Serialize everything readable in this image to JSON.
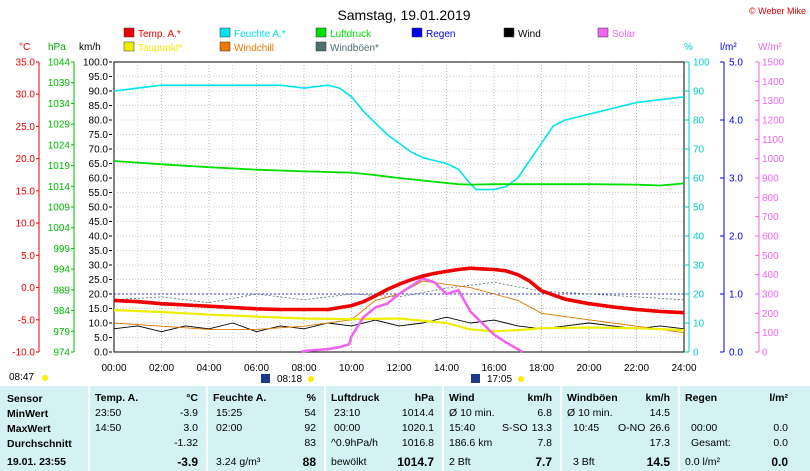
{
  "title": "Samstag, 19.01.2019",
  "copyright": "© Weber Mike",
  "legend": [
    {
      "label": "Temp. A.*",
      "color": "#ee0000"
    },
    {
      "label": "Feuchte A.*",
      "color": "#00e5ee"
    },
    {
      "label": "Luftdruck",
      "color": "#00dd00"
    },
    {
      "label": "Regen",
      "color": "#0000ee"
    },
    {
      "label": "Wind",
      "color": "#000000"
    },
    {
      "label": "Solar",
      "color": "#ee66ee"
    },
    {
      "label": "Taupunkt*",
      "color": "#eeee00"
    },
    {
      "label": "Windchill",
      "color": "#ee7700"
    },
    {
      "label": "Windböen*",
      "color": "#4d6e6e"
    }
  ],
  "axis_units": {
    "temp": "°C",
    "pressure": "hPa",
    "wind": "km/h",
    "humidity": "%",
    "rain": "l/m²",
    "solar": "W/m²"
  },
  "chart_data": {
    "type": "line",
    "x_ticks": [
      "00:00",
      "02:00",
      "04:00",
      "06:00",
      "08:00",
      "10:00",
      "12:00",
      "14:00",
      "16:00",
      "18:00",
      "20:00",
      "22:00",
      "24:00"
    ],
    "axes": {
      "temp": {
        "min": -10,
        "max": 35,
        "ticks": [
          "35.0",
          "30.0",
          "25.0",
          "20.0",
          "15.0",
          "10.0",
          "5.0",
          "0.0",
          "-5.0",
          "-10.0"
        ]
      },
      "pressure": {
        "min": 974,
        "max": 1044,
        "ticks": [
          "1044",
          "1039",
          "1034",
          "1029",
          "1024",
          "1019",
          "1014",
          "1009",
          "1004",
          "999",
          "994",
          "989",
          "984",
          "979",
          "974"
        ]
      },
      "wind": {
        "min": 0,
        "max": 100,
        "ticks": [
          "100.0",
          "95.0",
          "90.0",
          "85.0",
          "80.0",
          "75.0",
          "70.0",
          "65.0",
          "60.0",
          "55.0",
          "50.0",
          "45.0",
          "40.0",
          "35.0",
          "30.0",
          "25.0",
          "20.0",
          "15.0",
          "10.0",
          "5.0",
          "0.0"
        ]
      },
      "humidity": {
        "min": 0,
        "max": 100,
        "ticks": [
          "100",
          "90",
          "80",
          "70",
          "60",
          "50",
          "40",
          "30",
          "20",
          "10",
          "0"
        ]
      },
      "rain": {
        "min": 0,
        "max": 5,
        "ticks": [
          "5.0",
          "4.0",
          "3.0",
          "2.0",
          "1.0",
          "0.0"
        ]
      },
      "solar": {
        "min": 0,
        "max": 1500,
        "ticks": [
          "1500",
          "1400",
          "1300",
          "1200",
          "1100",
          "1000",
          "900",
          "800",
          "700",
          "600",
          "500",
          "400",
          "300",
          "200",
          "100",
          "0"
        ]
      }
    },
    "series": [
      {
        "name": "Feuchte A.*",
        "axis": "humidity",
        "x": [
          0,
          1,
          2,
          3,
          4,
          5,
          6,
          7,
          8,
          9,
          9.5,
          10,
          10.5,
          11,
          11.5,
          12,
          12.5,
          13,
          13.5,
          14,
          14.5,
          15,
          15.25,
          15.5,
          16,
          16.5,
          17,
          17.5,
          18,
          18.5,
          19,
          19.5,
          20,
          21,
          22,
          23,
          24
        ],
        "y": [
          90,
          91,
          92,
          92,
          92,
          92,
          92,
          92,
          91,
          92,
          91,
          88,
          83,
          79,
          75,
          72,
          69,
          67,
          66,
          65,
          63,
          58,
          56,
          56,
          56,
          57,
          60,
          66,
          72,
          78,
          80,
          81,
          82,
          84,
          86,
          87,
          88
        ]
      },
      {
        "name": "Luftdruck",
        "axis": "pressure",
        "x": [
          0,
          2,
          4,
          6,
          8,
          10,
          11,
          12,
          13,
          14,
          14.5,
          15,
          16,
          18,
          20,
          22,
          23,
          24
        ],
        "y": [
          1020.1,
          1019.3,
          1018.6,
          1018.0,
          1017.6,
          1017.3,
          1016.7,
          1016.0,
          1015.4,
          1014.8,
          1014.5,
          1014.4,
          1014.5,
          1014.5,
          1014.5,
          1014.4,
          1014.2,
          1014.7
        ]
      },
      {
        "name": "Temp. A.*",
        "axis": "temp",
        "x": [
          0,
          1,
          2,
          3,
          4,
          5,
          6,
          7,
          8,
          9,
          10,
          10.5,
          11,
          11.5,
          12,
          12.5,
          13,
          13.5,
          14,
          14.5,
          15,
          15.5,
          16,
          16.5,
          17,
          17.5,
          18,
          19,
          20,
          21,
          22,
          23,
          24
        ],
        "y": [
          -2.0,
          -2.2,
          -2.5,
          -2.7,
          -2.9,
          -3.1,
          -3.3,
          -3.4,
          -3.4,
          -3.4,
          -2.8,
          -2.2,
          -1.3,
          -0.3,
          0.5,
          1.2,
          1.8,
          2.2,
          2.5,
          2.8,
          3.0,
          2.9,
          2.8,
          2.6,
          2.0,
          1.0,
          -0.5,
          -1.8,
          -2.5,
          -3.0,
          -3.4,
          -3.7,
          -3.9
        ]
      },
      {
        "name": "Taupunkt*",
        "axis": "temp",
        "x": [
          0,
          2,
          4,
          6,
          8,
          10,
          12,
          14,
          15,
          16,
          17,
          18,
          20,
          22,
          24
        ],
        "y": [
          -3.5,
          -3.8,
          -4.2,
          -4.5,
          -4.8,
          -4.9,
          -4.8,
          -5.5,
          -6.5,
          -6.8,
          -6.6,
          -6.3,
          -6.2,
          -6.3,
          -6.6
        ]
      },
      {
        "name": "Solar",
        "axis": "solar",
        "x": [
          7.9,
          8,
          9,
          9.5,
          9.9,
          10,
          10.5,
          11,
          11.5,
          12,
          12.5,
          13,
          13.5,
          14,
          14.5,
          15,
          15.5,
          16,
          16.5,
          17,
          17.2
        ],
        "y": [
          0,
          5,
          15,
          25,
          40,
          80,
          180,
          230,
          250,
          300,
          340,
          380,
          360,
          300,
          320,
          210,
          150,
          90,
          50,
          15,
          0
        ]
      },
      {
        "name": "Wind",
        "axis": "wind",
        "x": [
          0,
          1,
          2,
          3,
          4,
          5,
          6,
          7,
          8,
          9,
          10,
          11,
          12,
          13,
          14,
          15,
          16,
          17,
          18,
          19,
          20,
          21,
          22,
          23,
          24
        ],
        "y": [
          8,
          9,
          7,
          9,
          8,
          10,
          7,
          9,
          8,
          10,
          9,
          11,
          9,
          10,
          12,
          10,
          11,
          9,
          8,
          9,
          10,
          9,
          8,
          9,
          8
        ]
      },
      {
        "name": "Windböen*",
        "axis": "wind",
        "x": [
          0,
          2,
          4,
          6,
          8,
          10,
          12,
          14,
          16,
          18,
          20,
          22,
          24
        ],
        "y": [
          18,
          19,
          17,
          20,
          18,
          20,
          19,
          22,
          24,
          21,
          20,
          19,
          18
        ]
      },
      {
        "name": "Windchill",
        "axis": "temp",
        "x": [
          0,
          2,
          4,
          6,
          8,
          10,
          11,
          12,
          13,
          14,
          15,
          16,
          17,
          18,
          20,
          22,
          24
        ],
        "y": [
          -5.5,
          -6.0,
          -6.5,
          -6.5,
          -6.0,
          -5.0,
          -2.0,
          -1.0,
          1.0,
          0.5,
          0.0,
          -1.0,
          -2.0,
          -4.0,
          -5.0,
          -6.0,
          -7.0
        ]
      }
    ],
    "markers": [
      {
        "label": "08:47",
        "position": "bottom-left"
      },
      {
        "label": "08:18",
        "position": "sunrise"
      },
      {
        "label": "17:05",
        "position": "sunset"
      }
    ]
  },
  "stats": {
    "headers": [
      "Sensor",
      "Temp. A.",
      "°C",
      "Feuchte A.",
      "%",
      "Luftdruck",
      "hPa",
      "Wind",
      "km/h",
      "Windböen",
      "km/h",
      "Regen",
      "l/m²"
    ],
    "rows": [
      {
        "label": "MinWert",
        "t_time": "23:50",
        "t_val": "-3.9",
        "h_time": "15:25",
        "h_val": "54",
        "p_time": "23:10",
        "p_val": "1014.4",
        "w_lbl": "Ø 10 min.",
        "w_val": "6.8",
        "g_lbl": "Ø 10 min.",
        "g_val": "14.5",
        "r_lbl": "",
        "r_val": ""
      },
      {
        "label": "MaxWert",
        "t_time": "14:50",
        "t_val": "3.0",
        "h_time": "02:00",
        "h_val": "92",
        "p_time": "00:00",
        "p_val": "1020.1",
        "w_lbl": "15:40",
        "w_dir": "S-SO",
        "w_val": "13.3",
        "g_lbl": "10:45",
        "g_dir": "O-NO",
        "g_val": "26.6",
        "r_lbl": "00:00",
        "r_val": "0.0"
      },
      {
        "label": "Durchschnitt",
        "t_time": "",
        "t_val": "-1.32",
        "h_time": "",
        "h_val": "83",
        "p_time": "^0.9hPa/h",
        "p_val": "1016.8",
        "w_lbl": "186.6 km",
        "w_val": "7.8",
        "g_lbl": "",
        "g_val": "17.3",
        "r_lbl": "Gesamt:",
        "r_val": "0.0"
      },
      {
        "label": "19.01. 23:55",
        "t_time": "",
        "t_val": "-3.9",
        "h_time": "3.24 g/m³",
        "h_val": "88",
        "p_time": "bewölkt",
        "p_val": "1014.7",
        "w_lbl": "2 Bft",
        "w_val": "7.7",
        "g_lbl": "3 Bft",
        "g_val": "14.5",
        "r_lbl": "0.0 l/m²",
        "r_val": "0.0"
      }
    ]
  }
}
